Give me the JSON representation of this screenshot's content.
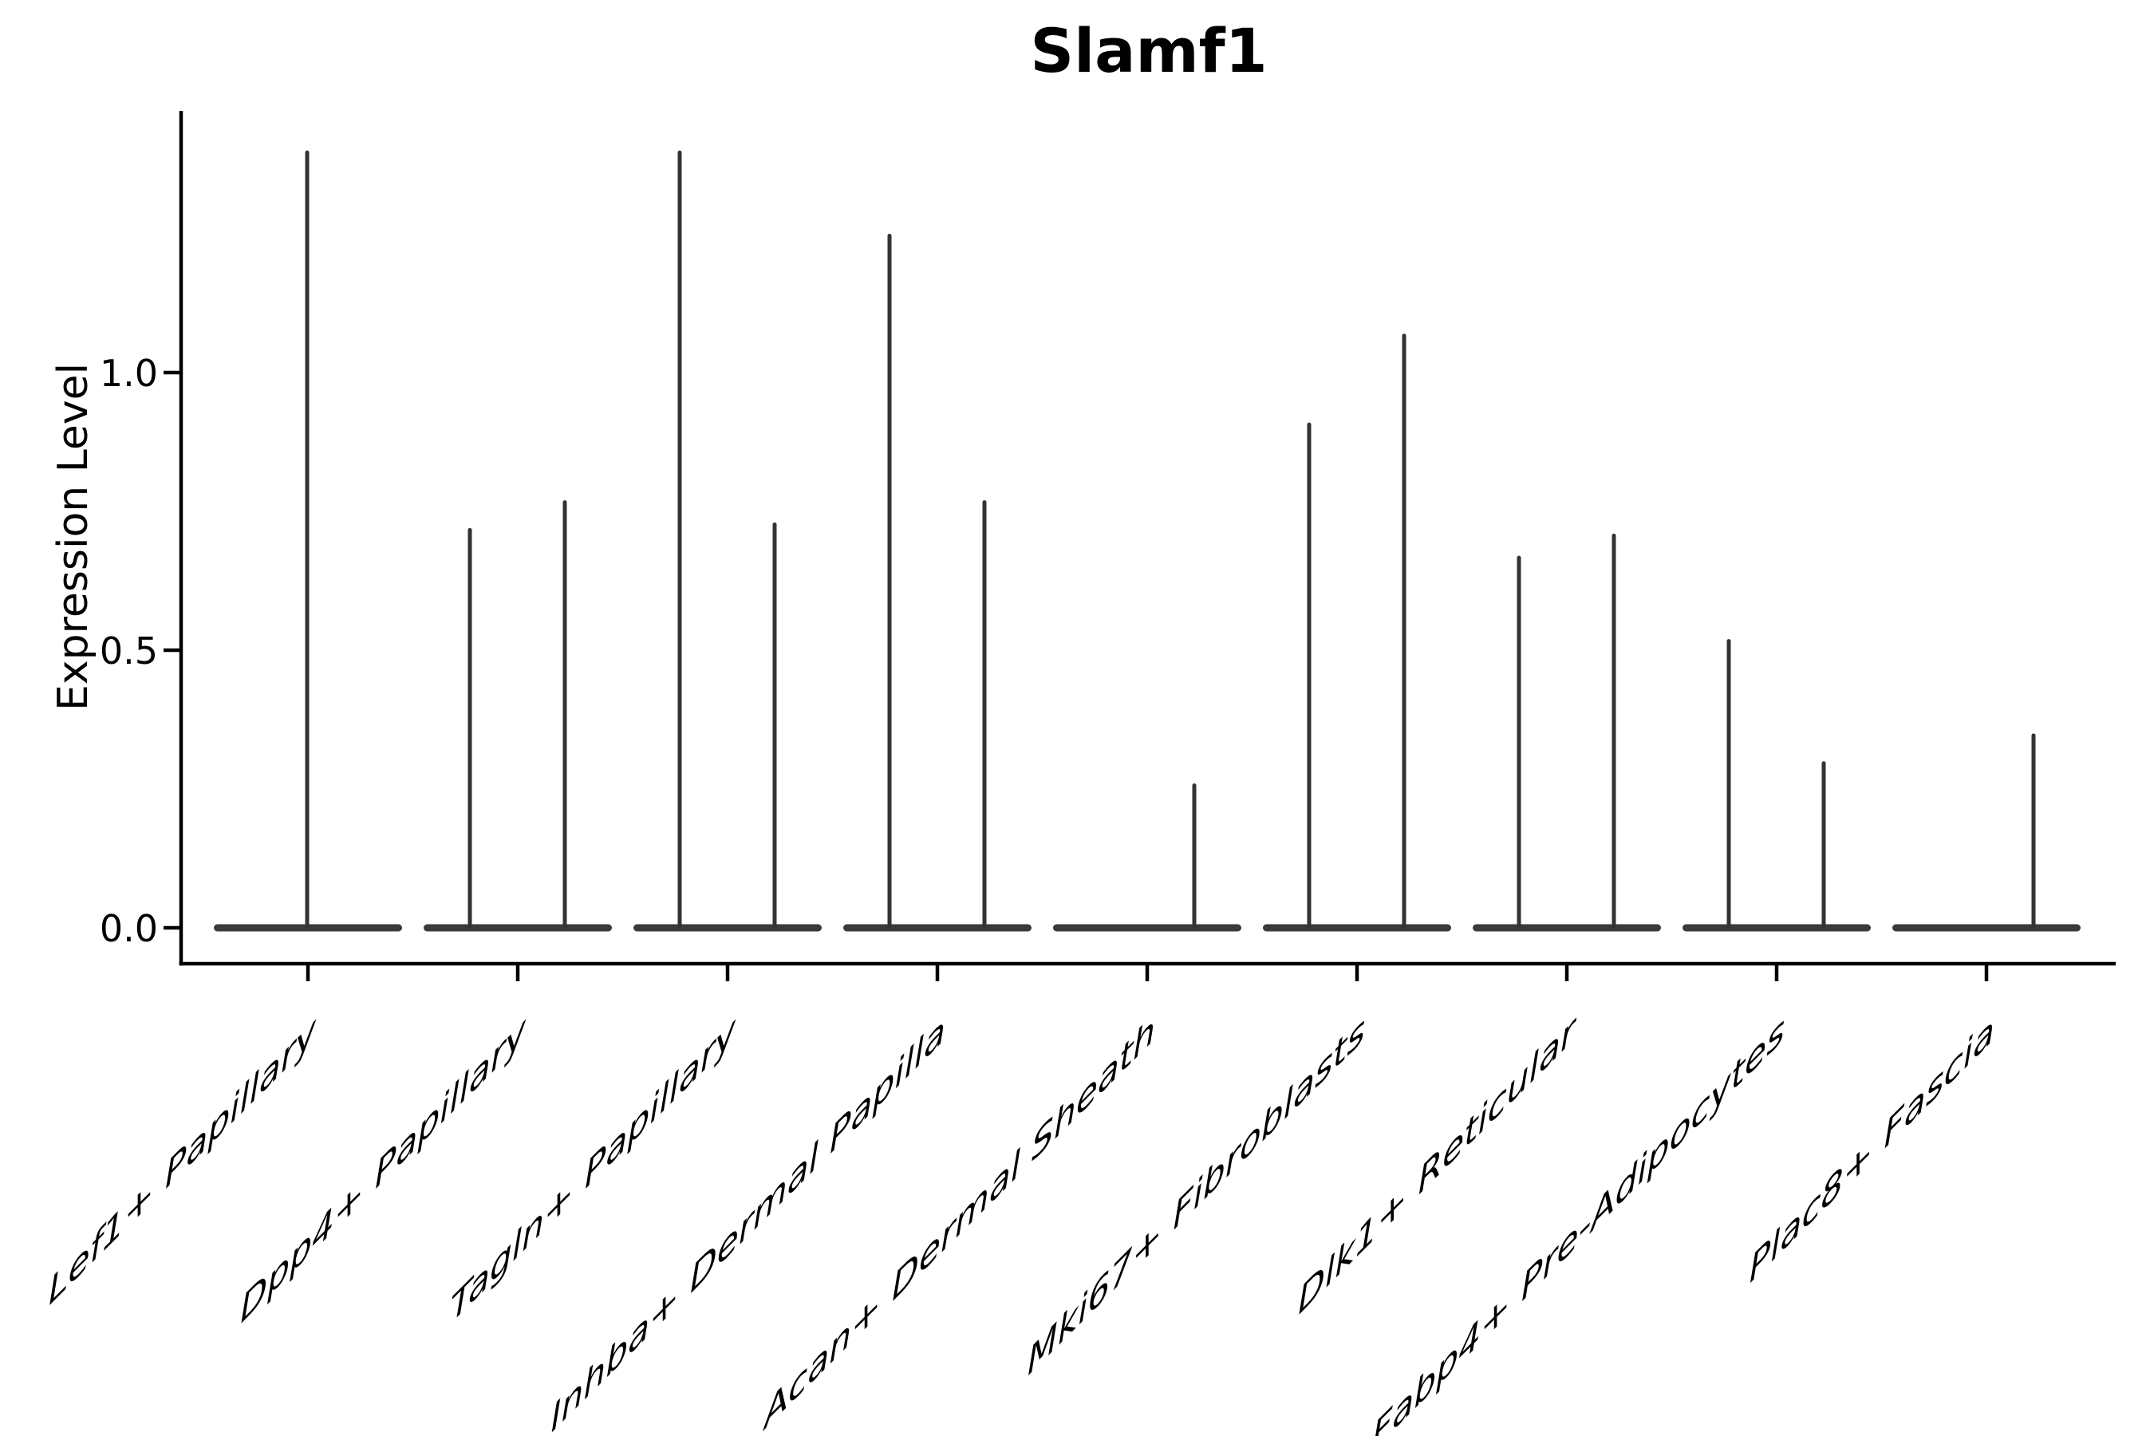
{
  "figure": {
    "title": "Slamf1"
  },
  "chart_data": {
    "type": "violin",
    "title": "Slamf1",
    "xlabel": "",
    "ylabel": "Expression Level",
    "ylim": [
      -0.07,
      1.47
    ],
    "yticks": [
      0.0,
      0.5,
      1.0
    ],
    "ytick_labels": [
      "0.0",
      "0.5",
      "1.0"
    ],
    "grid": false,
    "legend": "none",
    "baseline_value": 0.0,
    "categories": [
      "Lef1+ Papillary",
      "Dpp4+ Papillary",
      "Tagln+ Papillary",
      "Inhba+ Dermal Papilla",
      "Acan+ Dermal Sheath",
      "Mki67+ Fibroblasts",
      "Dlk1+ Reticular",
      "Fabp4+ Pre-Adipocytes",
      "Plac8+ Fascia"
    ],
    "violins": [
      {
        "category": "Lef1+ Papillary",
        "spikes": [
          {
            "position": "center",
            "max": 1.4
          }
        ]
      },
      {
        "category": "Dpp4+ Papillary",
        "spikes": [
          {
            "position": "left",
            "max": 0.72
          },
          {
            "position": "right",
            "max": 0.77
          }
        ]
      },
      {
        "category": "Tagln+ Papillary",
        "spikes": [
          {
            "position": "left",
            "max": 1.4
          },
          {
            "position": "right",
            "max": 0.73
          }
        ]
      },
      {
        "category": "Inhba+ Dermal Papilla",
        "spikes": [
          {
            "position": "left",
            "max": 1.25
          },
          {
            "position": "right",
            "max": 0.77
          }
        ]
      },
      {
        "category": "Acan+ Dermal Sheath",
        "spikes": [
          {
            "position": "right",
            "max": 0.26
          }
        ]
      },
      {
        "category": "Mki67+ Fibroblasts",
        "spikes": [
          {
            "position": "left",
            "max": 0.91
          },
          {
            "position": "right",
            "max": 1.07
          }
        ]
      },
      {
        "category": "Dlk1+ Reticular",
        "spikes": [
          {
            "position": "left",
            "max": 0.67
          },
          {
            "position": "right",
            "max": 0.71
          }
        ]
      },
      {
        "category": "Fabp4+ Pre-Adipocytes",
        "spikes": [
          {
            "position": "left",
            "max": 0.52
          },
          {
            "position": "right",
            "max": 0.3
          }
        ]
      },
      {
        "category": "Plac8+ Fascia",
        "spikes": [
          {
            "position": "right",
            "max": 0.35
          }
        ]
      }
    ],
    "style": {
      "violin_color": "#3a3a3a",
      "spike_color": "#333333",
      "spine_color": "#000000",
      "text_color": "#000000",
      "background": "#ffffff"
    }
  }
}
